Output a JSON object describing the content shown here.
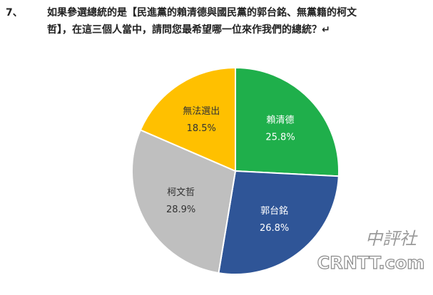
{
  "chart_data": {
    "type": "pie",
    "question_number": "7、",
    "title": [
      "如果參選總統的是【民進黨的賴清德與國民黨的郭台銘、無黨籍的柯文",
      "哲】，在這三個人當中，請問您最希望哪一位來作我們的總統？↵"
    ],
    "categories": [
      "賴清德",
      "郭台銘",
      "柯文哲",
      "無法選出"
    ],
    "values": [
      25.8,
      26.8,
      28.9,
      18.5
    ],
    "value_labels": [
      "25.8%",
      "26.8%",
      "28.9%",
      "18.5%"
    ],
    "colors": [
      "#1faf4b",
      "#2f5597",
      "#bfbfbf",
      "#ffc000"
    ],
    "label_colors": [
      "#ffffff",
      "#ffffff",
      "#333333",
      "#333333"
    ],
    "watermark": [
      "中評社",
      "CRNTT.com"
    ]
  }
}
